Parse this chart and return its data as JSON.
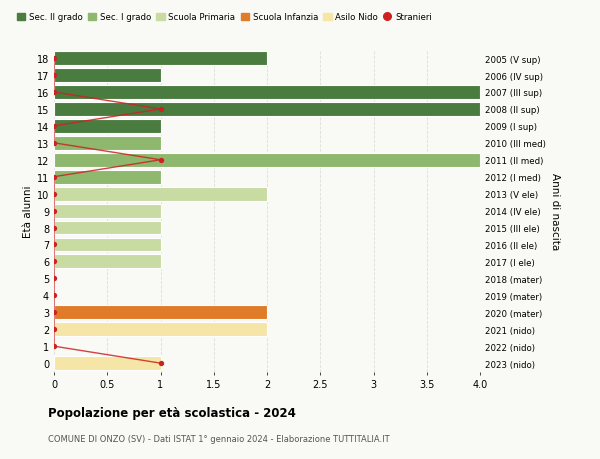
{
  "ages": [
    0,
    1,
    2,
    3,
    4,
    5,
    6,
    7,
    8,
    9,
    10,
    11,
    12,
    13,
    14,
    15,
    16,
    17,
    18
  ],
  "right_labels": [
    "2023 (nido)",
    "2022 (nido)",
    "2021 (nido)",
    "2020 (mater)",
    "2019 (mater)",
    "2018 (mater)",
    "2017 (I ele)",
    "2016 (II ele)",
    "2015 (III ele)",
    "2014 (IV ele)",
    "2013 (V ele)",
    "2012 (I med)",
    "2011 (II med)",
    "2010 (III med)",
    "2009 (I sup)",
    "2008 (II sup)",
    "2007 (III sup)",
    "2006 (IV sup)",
    "2005 (V sup)"
  ],
  "bar_values": [
    1,
    0,
    2,
    2,
    0,
    0,
    1,
    1,
    1,
    1,
    2,
    1,
    4,
    1,
    1,
    4,
    4,
    1,
    2
  ],
  "bar_colors": [
    "#f5e6a8",
    "#f5e6a8",
    "#f5e6a8",
    "#e07b2a",
    "#e07b2a",
    "#e07b2a",
    "#c8dba3",
    "#c8dba3",
    "#c8dba3",
    "#c8dba3",
    "#c8dba3",
    "#8db86e",
    "#8db86e",
    "#8db86e",
    "#4a7c40",
    "#4a7c40",
    "#4a7c40",
    "#4a7c40",
    "#4a7c40"
  ],
  "stranieri": [
    1,
    0,
    0,
    0,
    0,
    0,
    0,
    0,
    0,
    0,
    0,
    0,
    1,
    0,
    0,
    1,
    0,
    0,
    0
  ],
  "xlim": [
    0,
    4.0
  ],
  "ylim": [
    -0.5,
    18.5
  ],
  "ylabel": "Età alunni",
  "right_ylabel": "Anni di nascita",
  "title": "Popolazione per età scolastica - 2024",
  "subtitle": "COMUNE DI ONZO (SV) - Dati ISTAT 1° gennaio 2024 - Elaborazione TUTTITALIA.IT",
  "legend_labels": [
    "Sec. II grado",
    "Sec. I grado",
    "Scuola Primaria",
    "Scuola Infanzia",
    "Asilo Nido",
    "Stranieri"
  ],
  "legend_colors": [
    "#4a7c40",
    "#8db86e",
    "#c8dba3",
    "#e07b2a",
    "#f5e6a8",
    "#cc2222"
  ],
  "background_color": "#f9f9f5",
  "grid_color": "#dddddd",
  "bar_height": 0.82
}
